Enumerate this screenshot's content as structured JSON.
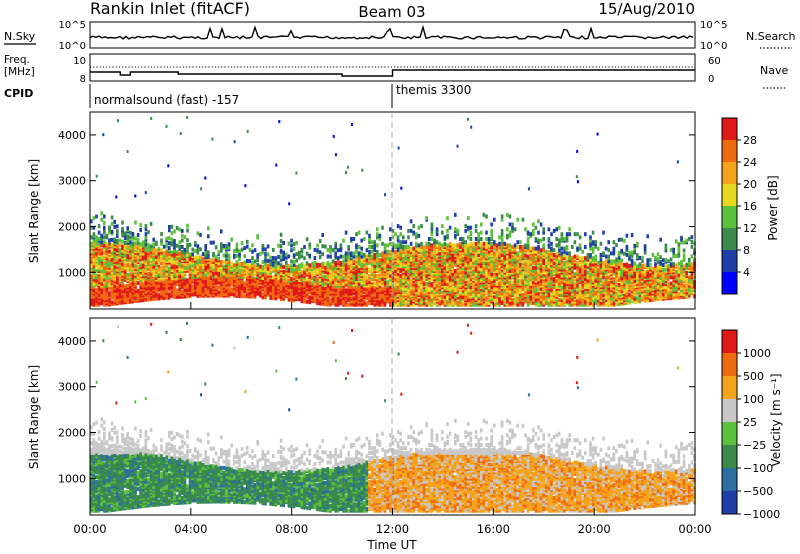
{
  "header": {
    "title": "Rankin Inlet (fitACF)",
    "beam": "Beam 03",
    "date": "15/Aug/2010"
  },
  "top_panels": {
    "nsky_label": "N.Sky",
    "nsky_ticks": [
      "10^5",
      "10^0"
    ],
    "nsearch_label": "N.Search",
    "nsearch_ticks": [
      "10^5",
      "10^0"
    ],
    "freq_label": "Freq.",
    "freq_unit": "[MHz]",
    "freq_ticks": [
      "10",
      "8"
    ],
    "nave_label": "Nave",
    "nave_ticks": [
      "60",
      "0"
    ],
    "cpid_label": "CPID",
    "cpid_segments": [
      {
        "label": "normalsound (fast) -157",
        "start_hour": 0
      },
      {
        "label": "themis 3300",
        "start_hour": 12
      }
    ]
  },
  "chart_data": [
    {
      "type": "heatmap",
      "name": "power",
      "ylabel": "Slant Range [km]",
      "xlim": [
        0,
        24
      ],
      "ylim": [
        200,
        4500
      ],
      "yticks": [
        "1000",
        "2000",
        "3000",
        "4000"
      ],
      "colorbar": {
        "label": "Power [dB]",
        "ticks": [
          "28",
          "24",
          "20",
          "16",
          "12",
          "8",
          "4"
        ],
        "colors": [
          "#0000ff",
          "#1f3fa8",
          "#3a8a4a",
          "#5cc13a",
          "#e8d81f",
          "#f5a31a",
          "#f06a10",
          "#e01818"
        ]
      }
    },
    {
      "type": "heatmap",
      "name": "velocity",
      "ylabel": "Slant Range [km]",
      "xlabel": "Time UT",
      "xlim": [
        0,
        24
      ],
      "ylim": [
        200,
        4500
      ],
      "yticks": [
        "1000",
        "2000",
        "3000",
        "4000"
      ],
      "xticks": [
        "00:00",
        "04:00",
        "08:00",
        "12:00",
        "16:00",
        "20:00",
        "00:00"
      ],
      "colorbar": {
        "label": "Velocity [m s⁻¹]",
        "ticks": [
          "1000",
          "500",
          "100",
          "25",
          "−25",
          "−100",
          "−500",
          "−1000"
        ],
        "colors": [
          "#1f3fa8",
          "#2a6fa0",
          "#3a8a4a",
          "#5cc13a",
          "#c8c8c8",
          "#f5a31a",
          "#f06a10",
          "#e01818"
        ]
      }
    }
  ]
}
